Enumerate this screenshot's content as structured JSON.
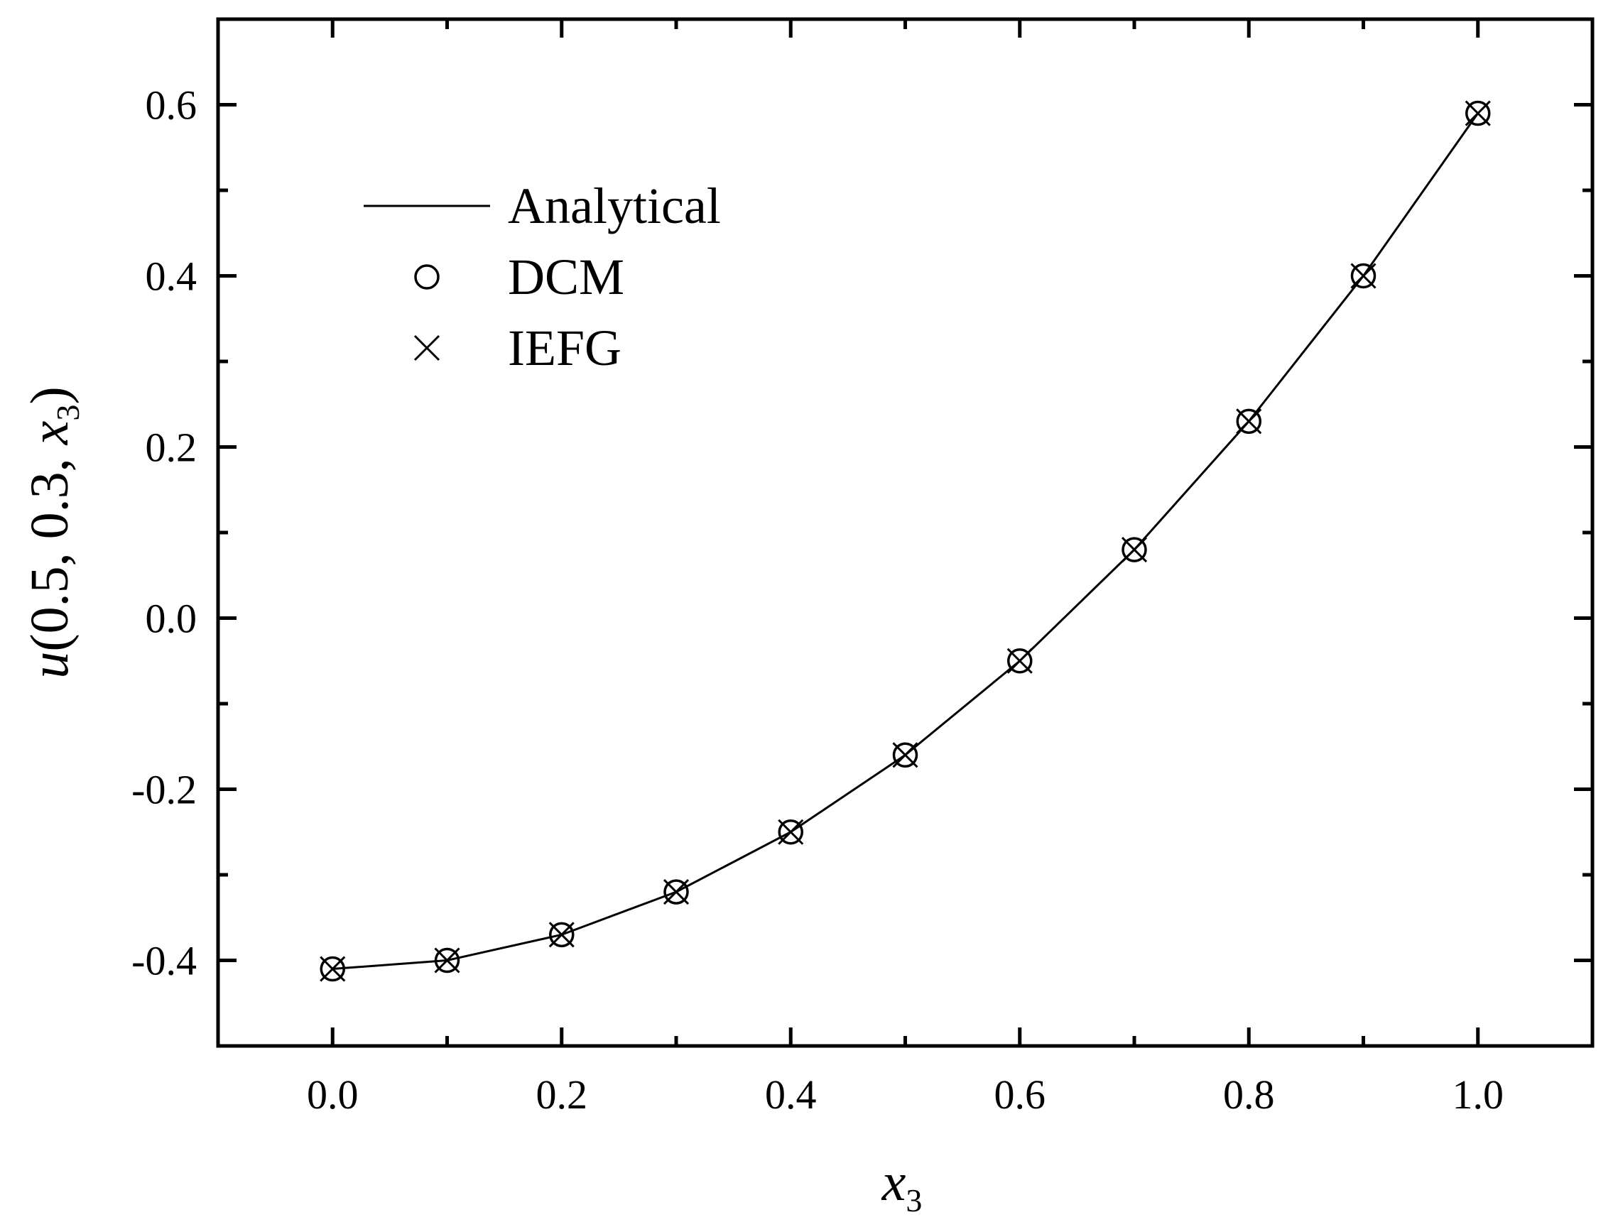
{
  "chart_data": {
    "type": "line",
    "title": "",
    "xlabel": {
      "var": "x",
      "sub": "3"
    },
    "ylabel": {
      "func": "u",
      "args": "(0.5, 0.3, ",
      "var": "x",
      "sub": "3",
      "close": ")"
    },
    "xlim": [
      -0.1,
      1.1
    ],
    "ylim": [
      -0.5,
      0.7
    ],
    "xticks": [
      "0.0",
      "0.2",
      "0.4",
      "0.6",
      "0.8",
      "1.0"
    ],
    "xtick_values": [
      0.0,
      0.2,
      0.4,
      0.6,
      0.8,
      1.0
    ],
    "yticks": [
      "-0.4",
      "-0.2",
      "0.0",
      "0.2",
      "0.4",
      "0.6"
    ],
    "ytick_values": [
      -0.4,
      -0.2,
      0.0,
      0.2,
      0.4,
      0.6
    ],
    "grid": false,
    "legend_position": "top-left",
    "x": [
      0.0,
      0.1,
      0.2,
      0.3,
      0.4,
      0.5,
      0.6,
      0.7,
      0.8,
      0.9,
      1.0
    ],
    "series": [
      {
        "name": "Analytical",
        "style": "line",
        "values": [
          -0.41,
          -0.4,
          -0.37,
          -0.32,
          -0.25,
          -0.16,
          -0.05,
          0.08,
          0.23,
          0.4,
          0.59
        ]
      },
      {
        "name": "DCM",
        "style": "circle",
        "values": [
          -0.41,
          -0.4,
          -0.37,
          -0.32,
          -0.25,
          -0.16,
          -0.05,
          0.08,
          0.23,
          0.4,
          0.59
        ]
      },
      {
        "name": "IEFG",
        "style": "cross",
        "values": [
          -0.41,
          -0.4,
          -0.37,
          -0.32,
          -0.25,
          -0.16,
          -0.05,
          0.08,
          0.23,
          0.4,
          0.59
        ]
      }
    ]
  },
  "colors": {
    "ink": "#000000",
    "background": "#ffffff"
  }
}
